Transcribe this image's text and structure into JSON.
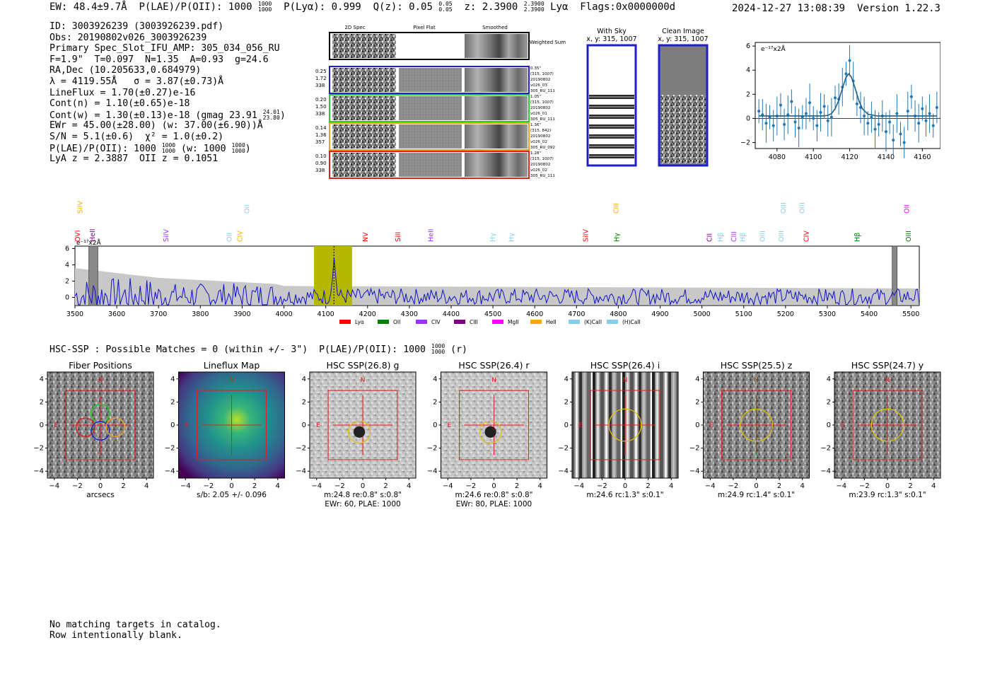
{
  "header": {
    "ew": "EW: 48.4±9.7Å",
    "plae_label": "P(LAE)/P(OII): 1000",
    "plae_hi": "1000",
    "plae_lo": "1000",
    "plya": "P(Lyα): 0.999",
    "qz_label": "Q(z): 0.05",
    "qz_hi": "0.05",
    "qz_lo": "0.05",
    "z_label": "z: 2.3900",
    "z_hi": "2.3900",
    "z_lo": "2.3900",
    "z_line": "Lyα",
    "flags": "Flags:0x0000000d",
    "timestamp": "2024-12-27 13:08:39",
    "version": "Version 1.22.3"
  },
  "info": {
    "id": "ID: 3003926239 (3003926239.pdf)",
    "obs": "Obs: 20190802v026_3003926239",
    "primary": "Primary Spec_Slot_IFU_AMP: 305_034_056_RU",
    "fit": "F=1.9\"  T=0.097  N=1.35  A=0.93  g=24.6",
    "radec": "RA,Dec (10.205633,0.684979)",
    "lambda": "λ = 4119.55Å   σ = 3.87(±0.73)Å",
    "lineflux": "LineFlux = 1.70(±0.27)e-16",
    "contn": "Cont(n) = 1.10(±0.65)e-18",
    "contw": "Cont(w) = 1.30(±0.13)e-18 (gmag 23.91",
    "contw_hi": "24.01",
    "contw_lo": "23.80",
    "contw_end": ")",
    "ewr": "EWr = 45.00(±28.00) (w: 37.00(±6.90))Å",
    "sn": "S/N = 5.1(±0.6)  χ² = 1.0(±0.2)",
    "plae": "P(LAE)/P(OII): 1000",
    "plae_hi": "1000",
    "plae_lo": "1000",
    "plae_w": "(w: 1000",
    "plae_w_hi": "1000",
    "plae_w_lo": "1000",
    "plae_w_end": ")",
    "lya_z": "LyA z = 2.3887  OII z = 0.1051"
  },
  "cutouts": {
    "col_headers": [
      "2D Spec",
      "Pixel Flat",
      "Smoothed"
    ],
    "weighted_label": "Weighted Sum",
    "rows": [
      {
        "left": [
          "0.25",
          "1.72",
          "338"
        ],
        "right": [
          "0.35\"",
          "(315, 1007)",
          "20190802",
          "v026_03",
          "305_RU_111"
        ],
        "color": "#1f1fd0"
      },
      {
        "left": [
          "0.20",
          "1.50",
          "338"
        ],
        "right": [
          "1.05\"",
          "(315, 1007)",
          "20190802",
          "v026_01",
          "305_RU_111"
        ],
        "color": "#22cc22"
      },
      {
        "left": [
          "0.14",
          "1.36",
          "357"
        ],
        "right": [
          "1.36\"",
          "(315, 842)",
          "20190802",
          "v026_02",
          "305_RU_092"
        ],
        "color": "#f0a020"
      },
      {
        "left": [
          "0.10",
          "0.90",
          "338"
        ],
        "right": [
          "1.28\"",
          "(315, 1007)",
          "20190802",
          "v026_02",
          "305_RU_111"
        ],
        "color": "#e02020"
      }
    ]
  },
  "sky_panels": {
    "with_sky_title": "With Sky",
    "with_sky_sub": "x, y: 315, 1007",
    "clean_title": "Clean Image",
    "clean_sub": "x, y: 315, 1007"
  },
  "zoom_plot": {
    "ylabel": "e⁻¹⁷x2Å",
    "xticks": [
      "4080",
      "4100",
      "4120",
      "4140",
      "4160"
    ],
    "yticks": [
      "6",
      "4",
      "2",
      "0",
      "−2"
    ]
  },
  "chart_data": [
    {
      "type": "line",
      "title": "",
      "xlabel": "",
      "ylabel": "e⁻¹⁷x2Å",
      "xlim": [
        4068,
        4170
      ],
      "ylim": [
        -2.5,
        6.3
      ],
      "grid": false,
      "series": [
        {
          "name": "",
          "x": [
            4070,
            4072,
            4074,
            4076,
            4078,
            4080,
            4082,
            4084,
            4086,
            4088,
            4090,
            4092,
            4094,
            4096,
            4098,
            4100,
            4102,
            4104,
            4106,
            4108,
            4110,
            4112,
            4114,
            4116,
            4118,
            4120,
            4122,
            4124,
            4126,
            4128,
            4130,
            4132,
            4134,
            4136,
            4138,
            4140,
            4142,
            4144,
            4146,
            4148,
            4150,
            4152,
            4154,
            4156,
            4158,
            4160,
            4162,
            4164,
            4166,
            4168
          ],
          "values": [
            0.6,
            0.3,
            -0.4,
            0.1,
            -0.6,
            0.2,
            1.1,
            -0.5,
            0.3,
            1.4,
            -0.3,
            -0.8,
            0.1,
            0.4,
            1.3,
            0.0,
            -0.6,
            0.5,
            1.0,
            -0.2,
            0.1,
            1.7,
            1.6,
            2.6,
            3.7,
            4.8,
            3.1,
            1.2,
            0.9,
            0.2,
            -0.4,
            0.1,
            -0.9,
            -0.5,
            0.2,
            -1.1,
            -0.3,
            -1.8,
            0.4,
            -1.3,
            -2.0,
            0.6,
            1.8,
            0.2,
            -0.4,
            0.8,
            -0.2,
            0.4,
            -0.6,
            0.9
          ]
        },
        {
          "name": "",
          "x": [
            4070,
            4080,
            4090,
            4100,
            4105,
            4108,
            4110,
            4112,
            4114,
            4116,
            4118,
            4119.5,
            4121,
            4123,
            4125,
            4127,
            4130,
            4135,
            4140,
            4150,
            4160,
            4168
          ],
          "values": [
            0.2,
            0.2,
            0.2,
            0.2,
            0.2,
            0.25,
            0.4,
            0.8,
            1.5,
            2.5,
            3.4,
            3.7,
            3.4,
            2.5,
            1.5,
            0.8,
            0.35,
            0.2,
            0.2,
            0.2,
            0.2,
            0.2
          ]
        }
      ]
    },
    {
      "type": "line",
      "title": "",
      "xlabel": "",
      "ylabel": "e⁻¹⁷x2Å",
      "xlim": [
        3500,
        5520
      ],
      "ylim": [
        -1,
        6.3
      ],
      "grid": false,
      "xticks": [
        "3500",
        "3600",
        "3700",
        "3800",
        "3900",
        "4000",
        "4100",
        "4200",
        "4300",
        "4400",
        "4500",
        "4600",
        "4700",
        "4800",
        "4900",
        "5000",
        "5100",
        "5200",
        "5300",
        "5400",
        "5500"
      ],
      "yticks": [
        "6",
        "4",
        "2",
        "0"
      ],
      "highlight_range": [
        4072,
        4163
      ],
      "line_center": 4119.55,
      "masked_ranges": [
        [
          3533,
          3555
        ],
        [
          5455,
          5467
        ]
      ],
      "legend": [
        "Lyα",
        "OII",
        "CIV",
        "CIII",
        "MgII",
        "HeII",
        "(K)CaII",
        "(H)CaII"
      ],
      "legend_colors": [
        "#ff0000",
        "#008000",
        "#9933ff",
        "#800080",
        "#ff00ff",
        "#ffa500",
        "#87ceeb",
        "#87ceeb"
      ],
      "line_labels": [
        {
          "text": "SiIV",
          "wave": 3513,
          "row": 0,
          "color": "#ffa500"
        },
        {
          "text": "OVI",
          "wave": 3507,
          "row": 1,
          "color": "#ff0000"
        },
        {
          "text": "HeII",
          "wave": 3542,
          "row": 1,
          "color": "#800080"
        },
        {
          "text": "SiIV",
          "wave": 3718,
          "row": 1,
          "color": "#9933ff"
        },
        {
          "text": "OII",
          "wave": 3870,
          "row": 1,
          "color": "#87ceeb"
        },
        {
          "text": "CIV",
          "wave": 3895,
          "row": 1,
          "color": "#ffa500"
        },
        {
          "text": "OII",
          "wave": 3912,
          "row": 0,
          "color": "#87ceeb"
        },
        {
          "text": "NV",
          "wave": 4195,
          "row": 1,
          "color": "#ff0000"
        },
        {
          "text": "SiII",
          "wave": 4273,
          "row": 1,
          "color": "#ff0000"
        },
        {
          "text": "HeII",
          "wave": 4352,
          "row": 1,
          "color": "#9933ff"
        },
        {
          "text": "Hγ",
          "wave": 4500,
          "row": 1,
          "color": "#87ceeb"
        },
        {
          "text": "Hγ",
          "wave": 4545,
          "row": 1,
          "color": "#87ceeb"
        },
        {
          "text": "SiIV",
          "wave": 4722,
          "row": 1,
          "color": "#ff0000"
        },
        {
          "text": "CIII",
          "wave": 4795,
          "row": 0,
          "color": "#ffa500"
        },
        {
          "text": "Hγ",
          "wave": 4797,
          "row": 1,
          "color": "#008000"
        },
        {
          "text": "CII",
          "wave": 5018,
          "row": 1,
          "color": "#800080"
        },
        {
          "text": "Hβ",
          "wave": 5045,
          "row": 1,
          "color": "#87ceeb"
        },
        {
          "text": "CIII",
          "wave": 5077,
          "row": 1,
          "color": "#9933ff"
        },
        {
          "text": "Hβ",
          "wave": 5098,
          "row": 1,
          "color": "#87ceeb"
        },
        {
          "text": "OIII",
          "wave": 5145,
          "row": 1,
          "color": "#87ceeb"
        },
        {
          "text": "OIII",
          "wave": 5190,
          "row": 1,
          "color": "#87ceeb"
        },
        {
          "text": "OIII",
          "wave": 5195,
          "row": 0,
          "color": "#87ceeb"
        },
        {
          "text": "OIII",
          "wave": 5240,
          "row": 0,
          "color": "#87ceeb"
        },
        {
          "text": "CIV",
          "wave": 5250,
          "row": 1,
          "color": "#ff0000"
        },
        {
          "text": "Hβ",
          "wave": 5372,
          "row": 1,
          "color": "#008000"
        },
        {
          "text": "OII",
          "wave": 5490,
          "row": 0,
          "color": "#ff00ff"
        },
        {
          "text": "OIII",
          "wave": 5495,
          "row": 1,
          "color": "#008000"
        }
      ]
    }
  ],
  "hsc": {
    "title": "HSC-SSP : Possible Matches = 0 (within +/- 3\")  P(LAE)/P(OII): 1000",
    "frac_hi": "1000",
    "frac_lo": "1000",
    "suffix": "(r)",
    "tick_labels": [
      "4",
      "2",
      "0",
      "−2",
      "−4"
    ],
    "xtick_labels": [
      "−4",
      "−2",
      "0",
      "2",
      "4"
    ],
    "north": "N",
    "east": "E",
    "panels": [
      {
        "title": "Fiber Positions",
        "caption1": "arcsecs",
        "caption2": "",
        "style": "noise",
        "circle": "fibers"
      },
      {
        "title": "Lineflux Map",
        "caption1": "s/b: 2.05 +/- 0.096",
        "caption2": "",
        "style": "viridis",
        "circle": "none"
      },
      {
        "title": "HSC SSP(26.8) g",
        "caption1": "m:24.8  re:0.8\"  s:0.8\"",
        "caption2": "EWr: 60, PLAE: 1000",
        "style": "light",
        "circle": "small"
      },
      {
        "title": "HSC SSP(26.4) r",
        "caption1": "m:24.6  re:0.8\"  s:0.8\"",
        "caption2": "EWr: 80, PLAE: 1000",
        "style": "light",
        "circle": "small"
      },
      {
        "title": "HSC SSP(26.4) i",
        "caption1": "m:24.6 rc:1.3\"  s:0.1\"",
        "caption2": "",
        "style": "stripes",
        "circle": "large"
      },
      {
        "title": "HSC SSP(25.5) z",
        "caption1": "m:24.9 rc:1.4\"  s:0.1\"",
        "caption2": "",
        "style": "noise",
        "circle": "large"
      },
      {
        "title": "HSC SSP(24.7) y",
        "caption1": "m:23.9 rc:1.3\"  s:0.1\"",
        "caption2": "",
        "style": "noise",
        "circle": "large"
      }
    ]
  },
  "footer": {
    "line1": "No matching targets in catalog.",
    "line2": "Row intentionally blank."
  }
}
